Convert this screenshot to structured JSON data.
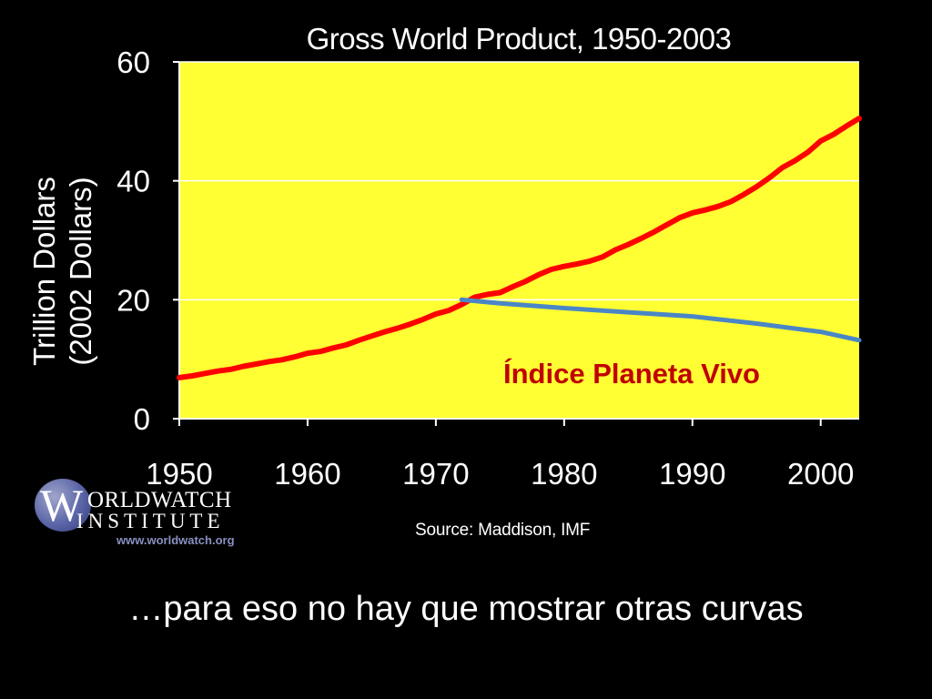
{
  "chart_data": {
    "type": "line",
    "title": "Gross World Product, 1950-2003",
    "ylabel_line1": "Trillion Dollars",
    "ylabel_line2": "(2002 Dollars)",
    "xlabel": "",
    "xlim": [
      1950,
      2003
    ],
    "ylim": [
      0,
      60
    ],
    "xticks": [
      "1950",
      "1960",
      "1970",
      "1980",
      "1990",
      "2000"
    ],
    "yticks": [
      "0",
      "20",
      "40",
      "60"
    ],
    "grid": true,
    "background": "#ffff33",
    "series": [
      {
        "color": "#ff0000",
        "x": [
          1950,
          1951,
          1952,
          1953,
          1954,
          1955,
          1956,
          1957,
          1958,
          1959,
          1960,
          1961,
          1962,
          1963,
          1964,
          1965,
          1966,
          1967,
          1968,
          1969,
          1970,
          1971,
          1972,
          1973,
          1974,
          1975,
          1976,
          1977,
          1978,
          1979,
          1980,
          1981,
          1982,
          1983,
          1984,
          1985,
          1986,
          1987,
          1988,
          1989,
          1990,
          1991,
          1992,
          1993,
          1994,
          1995,
          1996,
          1997,
          1998,
          1999,
          2000,
          2001,
          2002,
          2003
        ],
        "values": [
          6.9,
          7.2,
          7.6,
          8.0,
          8.3,
          8.8,
          9.2,
          9.6,
          9.9,
          10.4,
          11.0,
          11.3,
          11.9,
          12.4,
          13.2,
          13.9,
          14.6,
          15.2,
          15.9,
          16.7,
          17.6,
          18.2,
          19.2,
          20.4,
          20.9,
          21.2,
          22.2,
          23.1,
          24.2,
          25.1,
          25.6,
          26.0,
          26.5,
          27.2,
          28.4,
          29.3,
          30.3,
          31.4,
          32.6,
          33.8,
          34.6,
          35.1,
          35.7,
          36.5,
          37.7,
          39.0,
          40.5,
          42.2,
          43.4,
          44.8,
          46.7,
          47.8,
          49.2,
          50.5
        ]
      },
      {
        "name": "Índice Planeta Vivo",
        "color": "#4a86c6",
        "x": [
          1972,
          1975,
          1980,
          1985,
          1990,
          1995,
          2000,
          2003
        ],
        "values": [
          20.0,
          19.4,
          18.6,
          17.9,
          17.2,
          16.0,
          14.6,
          13.2
        ]
      }
    ]
  },
  "source": "Source: Maddison, IMF",
  "caption": "…para eso no hay que mostrar otras curvas",
  "logo": {
    "line1": "WORLDWATCH",
    "line2": "INSTITUTE",
    "url": "www.worldwatch.org"
  }
}
